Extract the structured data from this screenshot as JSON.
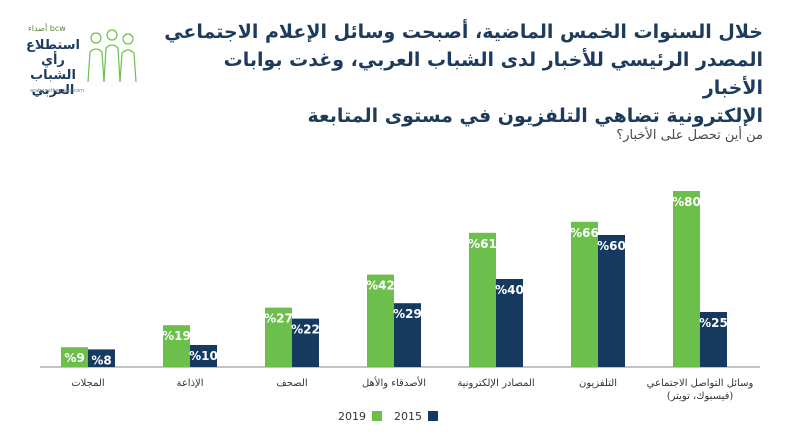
{
  "header": {
    "headline_lines": [
      "خلال السنوات الخمس الماضية، أصبحت وسائل الإعلام الاجتماعي",
      "المصدر الرئيسي للأخبار لدى الشباب العربي، وغدت بوابات الأخبار",
      "الإلكترونية تضاهي التلفزيون في مستوى المتابعة"
    ],
    "question": "من أين تحصل على الأخبار؟"
  },
  "logo": {
    "brand": "bcw أصداء",
    "title_line1": "استطلاع",
    "title_line2": "رأي الشباب",
    "title_line3": "العربي",
    "url": "arabyouthsurvey.com"
  },
  "chart_data": {
    "type": "bar",
    "categories": [
      "وسائل التواصل الاجتماعي (فيسبوك، تويتر)",
      "التلفزيون",
      "المصادر الإلكترونية",
      "الأصدقاء والأهل",
      "الصحف",
      "الإذاعة",
      "المجلات"
    ],
    "category_lines": [
      [
        "وسائل التواصل الاجتماعي",
        "(فيسبوك، تويتر)"
      ],
      [
        "التلفزيون"
      ],
      [
        "المصادر الإلكترونية"
      ],
      [
        "الأصدقاء والأهل"
      ],
      [
        "الصحف"
      ],
      [
        "الإذاعة"
      ],
      [
        "المجلات"
      ]
    ],
    "series": [
      {
        "name": "2019",
        "color": "#6cbf4a",
        "values": [
          80,
          66,
          61,
          42,
          27,
          19,
          9
        ]
      },
      {
        "name": "2015",
        "color": "#163a5f",
        "values": [
          25,
          60,
          40,
          29,
          22,
          10,
          8
        ]
      }
    ],
    "value_suffix": "%",
    "ylim": [
      0,
      100
    ],
    "grid": false,
    "legend_position": "bottom-center",
    "colors": {
      "headline": "#1d3b5c",
      "axis": "#888888"
    }
  }
}
